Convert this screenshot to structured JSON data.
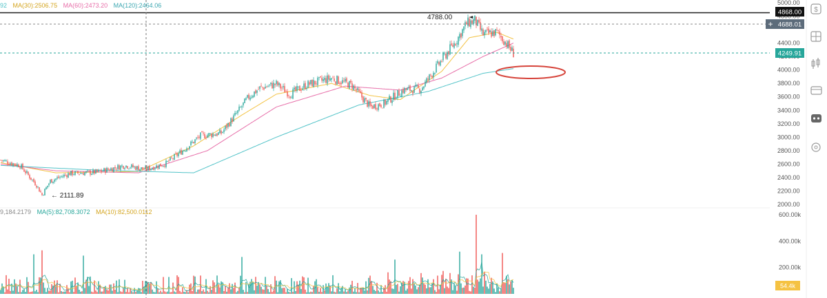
{
  "chart_data": {
    "type": "candlestick",
    "price_axis": {
      "ylim": [
        1900,
        5000
      ],
      "ticks": [
        "5000.00",
        "4800.00",
        "4400.00",
        "4200.00",
        "4000.00",
        "3800.00",
        "3600.00",
        "3400.00",
        "3200.00",
        "3000.00",
        "2800.00",
        "2600.00",
        "2400.00",
        "2200.00",
        "2000.00"
      ],
      "tick_values": [
        5000,
        4800,
        4400,
        4200,
        4000,
        3800,
        3600,
        3400,
        3200,
        3000,
        2800,
        2600,
        2400,
        2200,
        2000
      ]
    },
    "volume_axis": {
      "ylim": [
        0,
        650000
      ],
      "ticks": [
        "600.00k",
        "400.00k",
        "200.00k"
      ],
      "tick_values": [
        600000,
        400000,
        200000
      ]
    },
    "ma_legend": {
      "left_fragment": "92",
      "ma30": "MA(30):2506.75",
      "ma60": "MA(60):2473.20",
      "ma120": "MA(120):2464.06"
    },
    "volume_legend": {
      "left_fragment": "9,184.2179",
      "ma5": "MA(5):82,708.3072",
      "ma10": "MA(10):82,500.0112"
    },
    "price_badges": {
      "top": "4868.00",
      "crosshair": "4688.01",
      "last": "4249.91",
      "volume_last": "54.4k"
    },
    "annotations": {
      "high": "4788.00",
      "low": "← 2111.89"
    },
    "colors": {
      "up": "#26a69a",
      "down": "#ef5350",
      "ma_yellow": "#f3c242",
      "ma_pink": "#e76da8",
      "ma_teal": "#52c3c8",
      "last_price": "#26a69a",
      "ellipse": "#d6433a"
    },
    "anchors": [
      {
        "i": 0,
        "p": 2660
      },
      {
        "i": 14,
        "p": 2580
      },
      {
        "i": 26,
        "p": 2290
      },
      {
        "i": 30,
        "p": 2140
      },
      {
        "i": 36,
        "p": 2350
      },
      {
        "i": 50,
        "p": 2460
      },
      {
        "i": 70,
        "p": 2480
      },
      {
        "i": 90,
        "p": 2580
      },
      {
        "i": 105,
        "p": 2520
      },
      {
        "i": 120,
        "p": 2610
      },
      {
        "i": 135,
        "p": 2850
      },
      {
        "i": 145,
        "p": 3020
      },
      {
        "i": 160,
        "p": 3060
      },
      {
        "i": 170,
        "p": 3320
      },
      {
        "i": 180,
        "p": 3600
      },
      {
        "i": 188,
        "p": 3730
      },
      {
        "i": 200,
        "p": 3790
      },
      {
        "i": 210,
        "p": 3640
      },
      {
        "i": 222,
        "p": 3780
      },
      {
        "i": 240,
        "p": 3880
      },
      {
        "i": 255,
        "p": 3770
      },
      {
        "i": 268,
        "p": 3450
      },
      {
        "i": 278,
        "p": 3500
      },
      {
        "i": 292,
        "p": 3700
      },
      {
        "i": 305,
        "p": 3720
      },
      {
        "i": 320,
        "p": 4150
      },
      {
        "i": 330,
        "p": 4420
      },
      {
        "i": 338,
        "p": 4690
      },
      {
        "i": 344,
        "p": 4740
      },
      {
        "i": 350,
        "p": 4530
      },
      {
        "i": 360,
        "p": 4560
      },
      {
        "i": 366,
        "p": 4420
      },
      {
        "i": 372,
        "p": 4250
      }
    ],
    "ma_anchors": {
      "yellow": [
        {
          "i": 0,
          "p": 2620
        },
        {
          "i": 40,
          "p": 2470
        },
        {
          "i": 100,
          "p": 2490
        },
        {
          "i": 140,
          "p": 2870
        },
        {
          "i": 175,
          "p": 3330
        },
        {
          "i": 200,
          "p": 3640
        },
        {
          "i": 240,
          "p": 3800
        },
        {
          "i": 268,
          "p": 3620
        },
        {
          "i": 290,
          "p": 3560
        },
        {
          "i": 320,
          "p": 3980
        },
        {
          "i": 340,
          "p": 4480
        },
        {
          "i": 360,
          "p": 4560
        },
        {
          "i": 372,
          "p": 4460
        }
      ],
      "pink": [
        {
          "i": 0,
          "p": 2600
        },
        {
          "i": 40,
          "p": 2500
        },
        {
          "i": 100,
          "p": 2470
        },
        {
          "i": 150,
          "p": 2800
        },
        {
          "i": 200,
          "p": 3450
        },
        {
          "i": 250,
          "p": 3760
        },
        {
          "i": 290,
          "p": 3700
        },
        {
          "i": 320,
          "p": 3880
        },
        {
          "i": 350,
          "p": 4200
        },
        {
          "i": 372,
          "p": 4400
        }
      ],
      "teal": [
        {
          "i": 0,
          "p": 2580
        },
        {
          "i": 70,
          "p": 2510
        },
        {
          "i": 140,
          "p": 2470
        },
        {
          "i": 200,
          "p": 3000
        },
        {
          "i": 260,
          "p": 3480
        },
        {
          "i": 310,
          "p": 3680
        },
        {
          "i": 350,
          "p": 3950
        },
        {
          "i": 372,
          "p": 4020
        }
      ]
    },
    "volume_spikes": [
      {
        "i": 345,
        "v": 600000,
        "up": false
      },
      {
        "i": 333,
        "v": 320000,
        "up": true
      },
      {
        "i": 349,
        "v": 300000,
        "up": true
      },
      {
        "i": 364,
        "v": 310000,
        "up": false
      },
      {
        "i": 30,
        "v": 330000,
        "up": false
      },
      {
        "i": 24,
        "v": 300000,
        "up": true
      },
      {
        "i": 60,
        "v": 290000,
        "up": true
      },
      {
        "i": 286,
        "v": 260000,
        "up": true
      },
      {
        "i": 175,
        "v": 280000,
        "up": true
      }
    ]
  },
  "toolbar": {
    "icons": [
      "dollar-icon",
      "grid-icon",
      "candle-icon",
      "stats-icon",
      "card-icon",
      "bot-icon",
      "settings-icon"
    ]
  }
}
